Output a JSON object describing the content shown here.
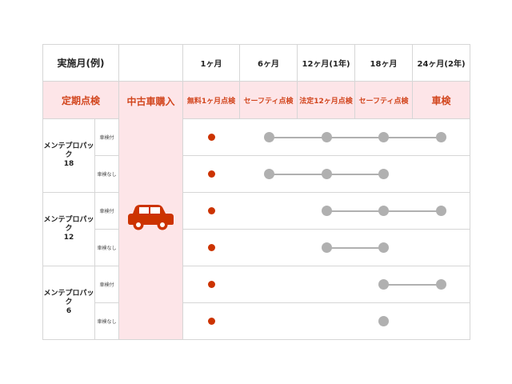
{
  "header": {
    "label": "実施月(例)",
    "months": [
      "1ヶ月",
      "6ヶ月",
      "12ヶ月(1年)",
      "18ヶ月",
      "24ヶ月(2年)"
    ]
  },
  "inspection_row": {
    "label": "定期点検",
    "purchase": "中古車購入",
    "items": [
      "無料1ヶ月点検",
      "セーフティ点検",
      "法定12ヶ月点検",
      "セーフティ点検",
      "車検"
    ]
  },
  "icons": {
    "purchase": "car-icon"
  },
  "colors": {
    "accent": "#d2461e",
    "pink": "#fde5e8",
    "red_dot": "#cc3300",
    "gray_dot": "#b0b0b0"
  },
  "packs": [
    {
      "name": "メンテプロパック\n18",
      "rows": [
        {
          "sub": "車検付",
          "red": [
            0
          ],
          "gray": [
            1,
            2,
            3,
            4
          ]
        },
        {
          "sub": "車検なし",
          "red": [
            0
          ],
          "gray": [
            1,
            2,
            3
          ]
        }
      ]
    },
    {
      "name": "メンテプロパック\n12",
      "rows": [
        {
          "sub": "車検付",
          "red": [
            0
          ],
          "gray": [
            2,
            3,
            4
          ]
        },
        {
          "sub": "車検なし",
          "red": [
            0
          ],
          "gray": [
            2,
            3
          ]
        }
      ]
    },
    {
      "name": "メンテプロパック\n6",
      "rows": [
        {
          "sub": "車検付",
          "red": [
            0
          ],
          "gray": [
            3,
            4
          ]
        },
        {
          "sub": "車検なし",
          "red": [
            0
          ],
          "gray": [
            3
          ]
        }
      ]
    }
  ]
}
